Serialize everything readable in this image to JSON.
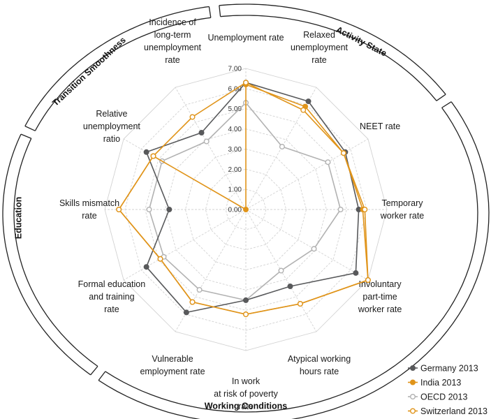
{
  "chart_data": {
    "type": "radar",
    "axes": [
      [
        "Unemployment rate"
      ],
      [
        "Relaxed",
        "unemployment",
        "rate"
      ],
      [
        "NEET rate"
      ],
      [
        "Temporary",
        "worker rate"
      ],
      [
        "Involuntary",
        "part-time",
        "worker rate"
      ],
      [
        "Atypical working",
        "hours rate"
      ],
      [
        "In work",
        "at risk of poverty",
        "rate"
      ],
      [
        "Vulnerable",
        "employment rate"
      ],
      [
        "Formal education",
        "and training",
        "rate"
      ],
      [
        "Skills mismatch",
        "rate"
      ],
      [
        "Relative",
        "unemployment",
        "ratio"
      ],
      [
        "Incidence of",
        "long-term",
        "unemployment",
        "rate"
      ]
    ],
    "rlim": [
      0,
      7
    ],
    "ticks": [
      "0.00",
      "1.00",
      "2.00",
      "3.00",
      "4.00",
      "5.00",
      "6.00",
      "7.00"
    ],
    "grid": true,
    "legend_position": "bottom-right",
    "series": [
      {
        "name": "Germany 2013",
        "color": "#58595b",
        "hollow": false,
        "values": [
          6.3,
          6.2,
          5.7,
          5.6,
          6.3,
          4.4,
          4.5,
          5.9,
          5.7,
          3.8,
          5.7,
          4.4
        ]
      },
      {
        "name": "India 2013",
        "color": "#e0941a",
        "hollow": false,
        "values": [
          6.2,
          5.9,
          5.6,
          5.8,
          7.0,
          5.4,
          5.2,
          5.3,
          4.9,
          6.3,
          5.3,
          0.0
        ]
      },
      {
        "name": "OECD 2013",
        "color": "#b2b2b2",
        "hollow": true,
        "values": [
          5.3,
          3.6,
          4.7,
          4.7,
          3.9,
          3.5,
          4.5,
          4.6,
          4.7,
          4.8,
          4.8,
          3.9
        ]
      },
      {
        "name": "Switzerland 2013",
        "color": "#e0941a",
        "hollow": true,
        "values": [
          6.3,
          5.7,
          5.6,
          5.9,
          7.0,
          5.4,
          5.2,
          5.3,
          4.9,
          6.3,
          5.3,
          5.3
        ]
      }
    ]
  },
  "sections": {
    "activity_state": "Activity State",
    "working_conditions": "Working Conditions",
    "education": "Education",
    "transition_smoothness": "Transition Smoothness"
  }
}
